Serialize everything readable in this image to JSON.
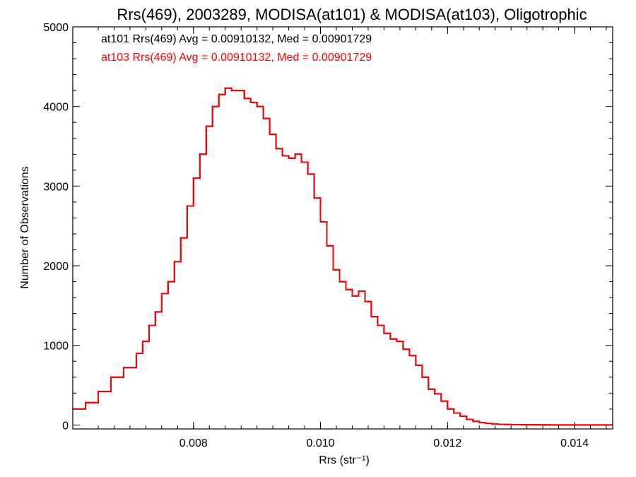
{
  "chart_data": {
    "type": "histogram",
    "title": "Rrs(469), 2003289, MODISA(at101) & MODISA(at103), Oligotrophic",
    "xlabel": "Rrs (str⁻¹)",
    "ylabel": "Number of Observations",
    "xlim": [
      0.0061,
      0.0146
    ],
    "ylim": [
      -50,
      5000
    ],
    "xticks": [
      0.008,
      0.01,
      0.012,
      0.014
    ],
    "xtick_labels": [
      "0.008",
      "0.010",
      "0.012",
      "0.014"
    ],
    "yticks": [
      0,
      1000,
      2000,
      3000,
      4000,
      5000
    ],
    "ytick_labels": [
      "0",
      "1000",
      "2000",
      "3000",
      "4000",
      "5000"
    ],
    "grid": false,
    "annotations": [
      {
        "text": "at101 Rrs(469) Avg = 0.00910132, Med = 0.00901729",
        "color": "#000000"
      },
      {
        "text": "at103 Rrs(469) Avg = 0.00910132, Med = 0.00901729",
        "color": "#ff0000"
      }
    ],
    "series": [
      {
        "name": "at101",
        "color": "#000000",
        "x": [
          0.0061,
          0.0063,
          0.0065,
          0.0067,
          0.0069,
          0.0071,
          0.0072,
          0.0073,
          0.0074,
          0.0075,
          0.0076,
          0.0077,
          0.0078,
          0.0079,
          0.008,
          0.0081,
          0.0082,
          0.0083,
          0.0084,
          0.0085,
          0.0086,
          0.0087,
          0.0088,
          0.0089,
          0.009,
          0.0091,
          0.0092,
          0.0093,
          0.0094,
          0.0095,
          0.0096,
          0.0097,
          0.0098,
          0.0099,
          0.01,
          0.0101,
          0.0102,
          0.0103,
          0.0104,
          0.0105,
          0.0106,
          0.0107,
          0.0108,
          0.0109,
          0.011,
          0.0111,
          0.0112,
          0.0113,
          0.0114,
          0.0115,
          0.0116,
          0.0117,
          0.0118,
          0.0119,
          0.012,
          0.0121,
          0.0122,
          0.0123,
          0.0124,
          0.0125,
          0.0126,
          0.0127,
          0.0128,
          0.0129,
          0.013,
          0.0132,
          0.0134,
          0.0136,
          0.0138,
          0.014,
          0.0142,
          0.0144,
          0.0146
        ],
        "y": [
          200,
          280,
          420,
          600,
          720,
          900,
          1050,
          1250,
          1420,
          1650,
          1800,
          2050,
          2350,
          2750,
          3100,
          3400,
          3750,
          4000,
          4150,
          4230,
          4200,
          4200,
          4100,
          4050,
          4000,
          3850,
          3650,
          3470,
          3380,
          3350,
          3400,
          3300,
          3150,
          2850,
          2550,
          2250,
          1950,
          1800,
          1700,
          1620,
          1680,
          1550,
          1360,
          1250,
          1150,
          1080,
          1050,
          950,
          870,
          750,
          600,
          450,
          390,
          300,
          200,
          150,
          110,
          70,
          45,
          30,
          20,
          12,
          8,
          5,
          3,
          2,
          1,
          0,
          0,
          0,
          0,
          0,
          0
        ]
      },
      {
        "name": "at103",
        "color": "#ff0000",
        "x": [
          0.0061,
          0.0063,
          0.0065,
          0.0067,
          0.0069,
          0.0071,
          0.0072,
          0.0073,
          0.0074,
          0.0075,
          0.0076,
          0.0077,
          0.0078,
          0.0079,
          0.008,
          0.0081,
          0.0082,
          0.0083,
          0.0084,
          0.0085,
          0.0086,
          0.0087,
          0.0088,
          0.0089,
          0.009,
          0.0091,
          0.0092,
          0.0093,
          0.0094,
          0.0095,
          0.0096,
          0.0097,
          0.0098,
          0.0099,
          0.01,
          0.0101,
          0.0102,
          0.0103,
          0.0104,
          0.0105,
          0.0106,
          0.0107,
          0.0108,
          0.0109,
          0.011,
          0.0111,
          0.0112,
          0.0113,
          0.0114,
          0.0115,
          0.0116,
          0.0117,
          0.0118,
          0.0119,
          0.012,
          0.0121,
          0.0122,
          0.0123,
          0.0124,
          0.0125,
          0.0126,
          0.0127,
          0.0128,
          0.0129,
          0.013,
          0.0132,
          0.0134,
          0.0136,
          0.0138,
          0.014,
          0.0142,
          0.0144,
          0.0146
        ],
        "y": [
          200,
          280,
          420,
          600,
          720,
          900,
          1050,
          1250,
          1420,
          1650,
          1800,
          2050,
          2350,
          2750,
          3100,
          3400,
          3750,
          4000,
          4150,
          4230,
          4200,
          4200,
          4100,
          4050,
          4000,
          3850,
          3650,
          3470,
          3380,
          3350,
          3400,
          3300,
          3150,
          2850,
          2550,
          2250,
          1950,
          1800,
          1700,
          1620,
          1680,
          1550,
          1360,
          1250,
          1150,
          1080,
          1050,
          950,
          870,
          750,
          600,
          450,
          390,
          300,
          200,
          150,
          110,
          70,
          45,
          30,
          20,
          12,
          8,
          5,
          3,
          2,
          1,
          0,
          0,
          0,
          0,
          0,
          0
        ]
      }
    ]
  }
}
